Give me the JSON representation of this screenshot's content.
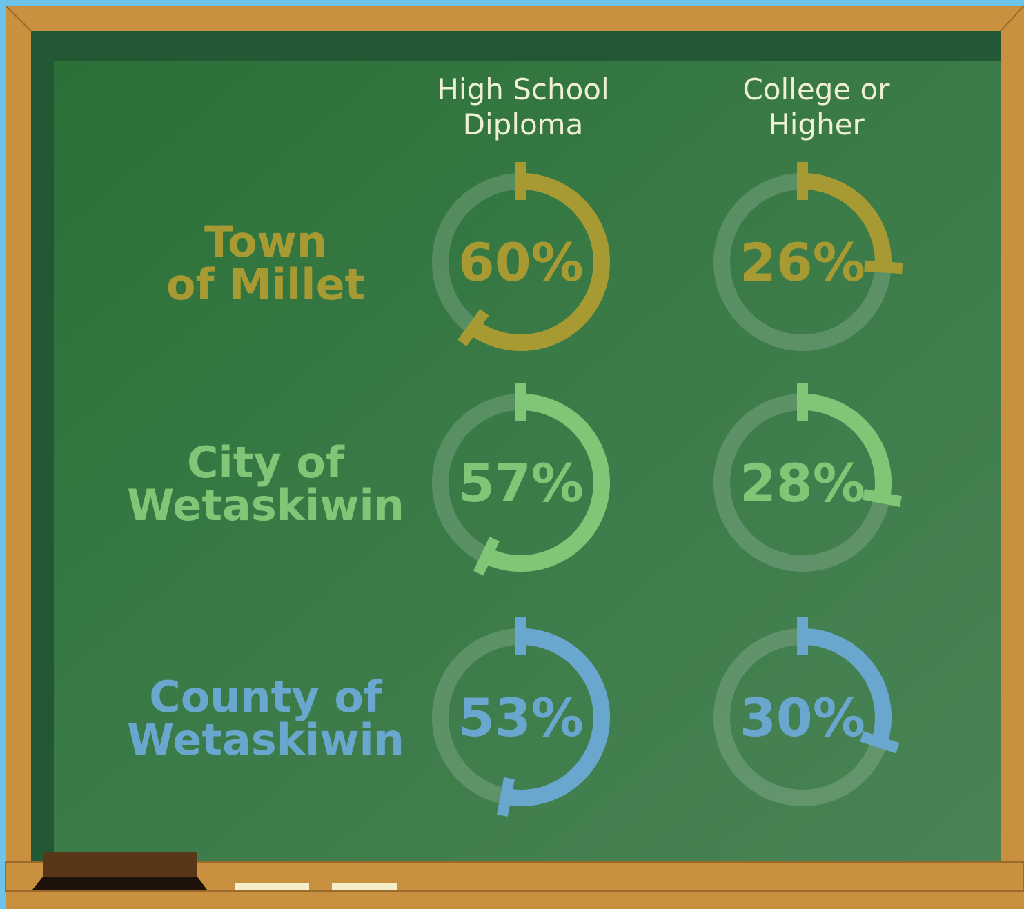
{
  "chart_data": {
    "type": "ring",
    "categories": [
      "High School\nDiploma",
      "College or\nHigher"
    ],
    "ylim": [
      0,
      100
    ],
    "series": [
      {
        "name": "Town\nof Millet",
        "color": "#a89a32",
        "values": [
          60,
          26
        ],
        "value_labels": [
          "60%",
          "26%"
        ]
      },
      {
        "name": "City of\nWetaskiwin",
        "color": "#80c676",
        "values": [
          57,
          28
        ],
        "value_labels": [
          "57%",
          "28%"
        ]
      },
      {
        "name": "County of\nWetaskiwin",
        "color": "#6aa7cf",
        "values": [
          53,
          30
        ],
        "value_labels": [
          "53%",
          "30%"
        ]
      }
    ]
  }
}
